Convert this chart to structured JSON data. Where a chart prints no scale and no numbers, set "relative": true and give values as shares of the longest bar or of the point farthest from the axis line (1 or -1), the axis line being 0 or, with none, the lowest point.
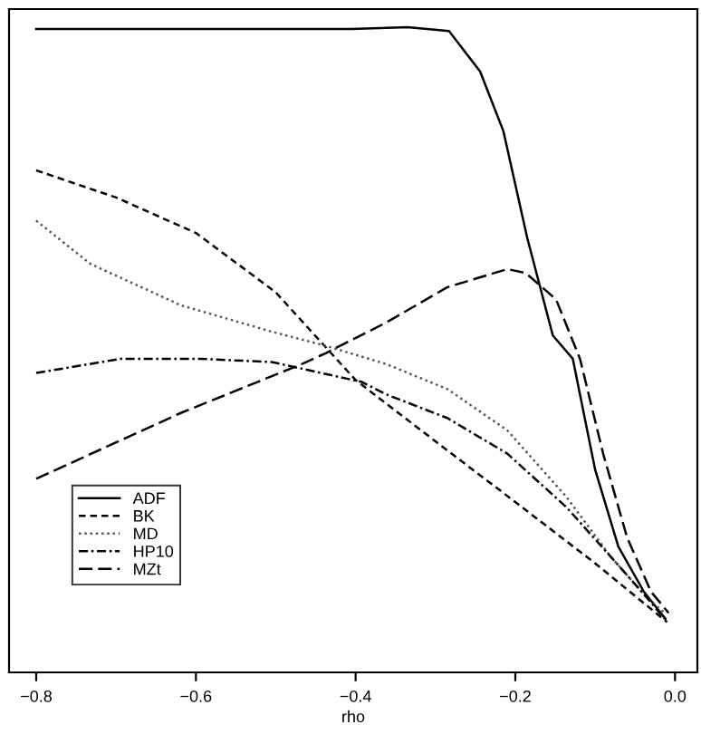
{
  "chart_data": {
    "type": "line",
    "xlabel": "rho",
    "relative": true,
    "xlim": [
      -0.834,
      0.028
    ],
    "xticks": [
      {
        "value": -0.8,
        "label": "−0.8"
      },
      {
        "value": -0.6,
        "label": "−0.6"
      },
      {
        "value": -0.4,
        "label": "−0.4"
      },
      {
        "value": -0.2,
        "label": "−0.2"
      },
      {
        "value": 0.0,
        "label": "0.0"
      }
    ],
    "legend": "bottom left",
    "grid": false,
    "marker": "none",
    "series": [
      {
        "name": "ADF",
        "color": "#000000",
        "line_style": "solid",
        "x": [
          -0.8,
          -0.6,
          -0.405,
          -0.335,
          -0.283,
          -0.244,
          -0.215,
          -0.185,
          -0.153,
          -0.128,
          -0.1,
          -0.071,
          -0.039,
          -0.021,
          -0.012
        ],
        "values": [
          0.997,
          0.997,
          0.997,
          1.0,
          0.994,
          0.931,
          0.839,
          0.673,
          0.522,
          0.486,
          0.314,
          0.195,
          0.125,
          0.097,
          0.083
        ]
      },
      {
        "name": "BK",
        "color": "#000000",
        "line_style": "dashed",
        "x": [
          -0.8,
          -0.7,
          -0.6,
          -0.5,
          -0.4,
          -0.3,
          -0.2,
          -0.1,
          -0.01
        ],
        "values": [
          0.778,
          0.736,
          0.681,
          0.589,
          0.453,
          0.358,
          0.264,
          0.169,
          0.078
        ]
      },
      {
        "name": "MD",
        "color": "#555555",
        "line_style": "dotted",
        "x": [
          -0.8,
          -0.732,
          -0.619,
          -0.505,
          -0.437,
          -0.362,
          -0.285,
          -0.21,
          -0.136,
          -0.081,
          -0.036,
          -0.013
        ],
        "values": [
          0.7,
          0.633,
          0.569,
          0.528,
          0.506,
          0.478,
          0.439,
          0.375,
          0.272,
          0.18,
          0.117,
          0.092
        ]
      },
      {
        "name": "HP10",
        "color": "#000000",
        "line_style": "dashdot",
        "x": [
          -0.8,
          -0.694,
          -0.596,
          -0.505,
          -0.392,
          -0.362,
          -0.285,
          -0.21,
          -0.136,
          -0.081,
          -0.036,
          -0.013
        ],
        "values": [
          0.464,
          0.486,
          0.486,
          0.481,
          0.45,
          0.431,
          0.394,
          0.339,
          0.256,
          0.18,
          0.117,
          0.083
        ]
      },
      {
        "name": "MZt",
        "color": "#000000",
        "line_style": "longdash",
        "x": [
          -0.8,
          -0.619,
          -0.467,
          -0.437,
          -0.362,
          -0.285,
          -0.21,
          -0.187,
          -0.149,
          -0.119,
          -0.09,
          -0.06,
          -0.03,
          -0.008
        ],
        "values": [
          0.3,
          0.402,
          0.478,
          0.495,
          0.542,
          0.597,
          0.625,
          0.619,
          0.578,
          0.486,
          0.339,
          0.209,
          0.125,
          0.092
        ]
      }
    ]
  }
}
